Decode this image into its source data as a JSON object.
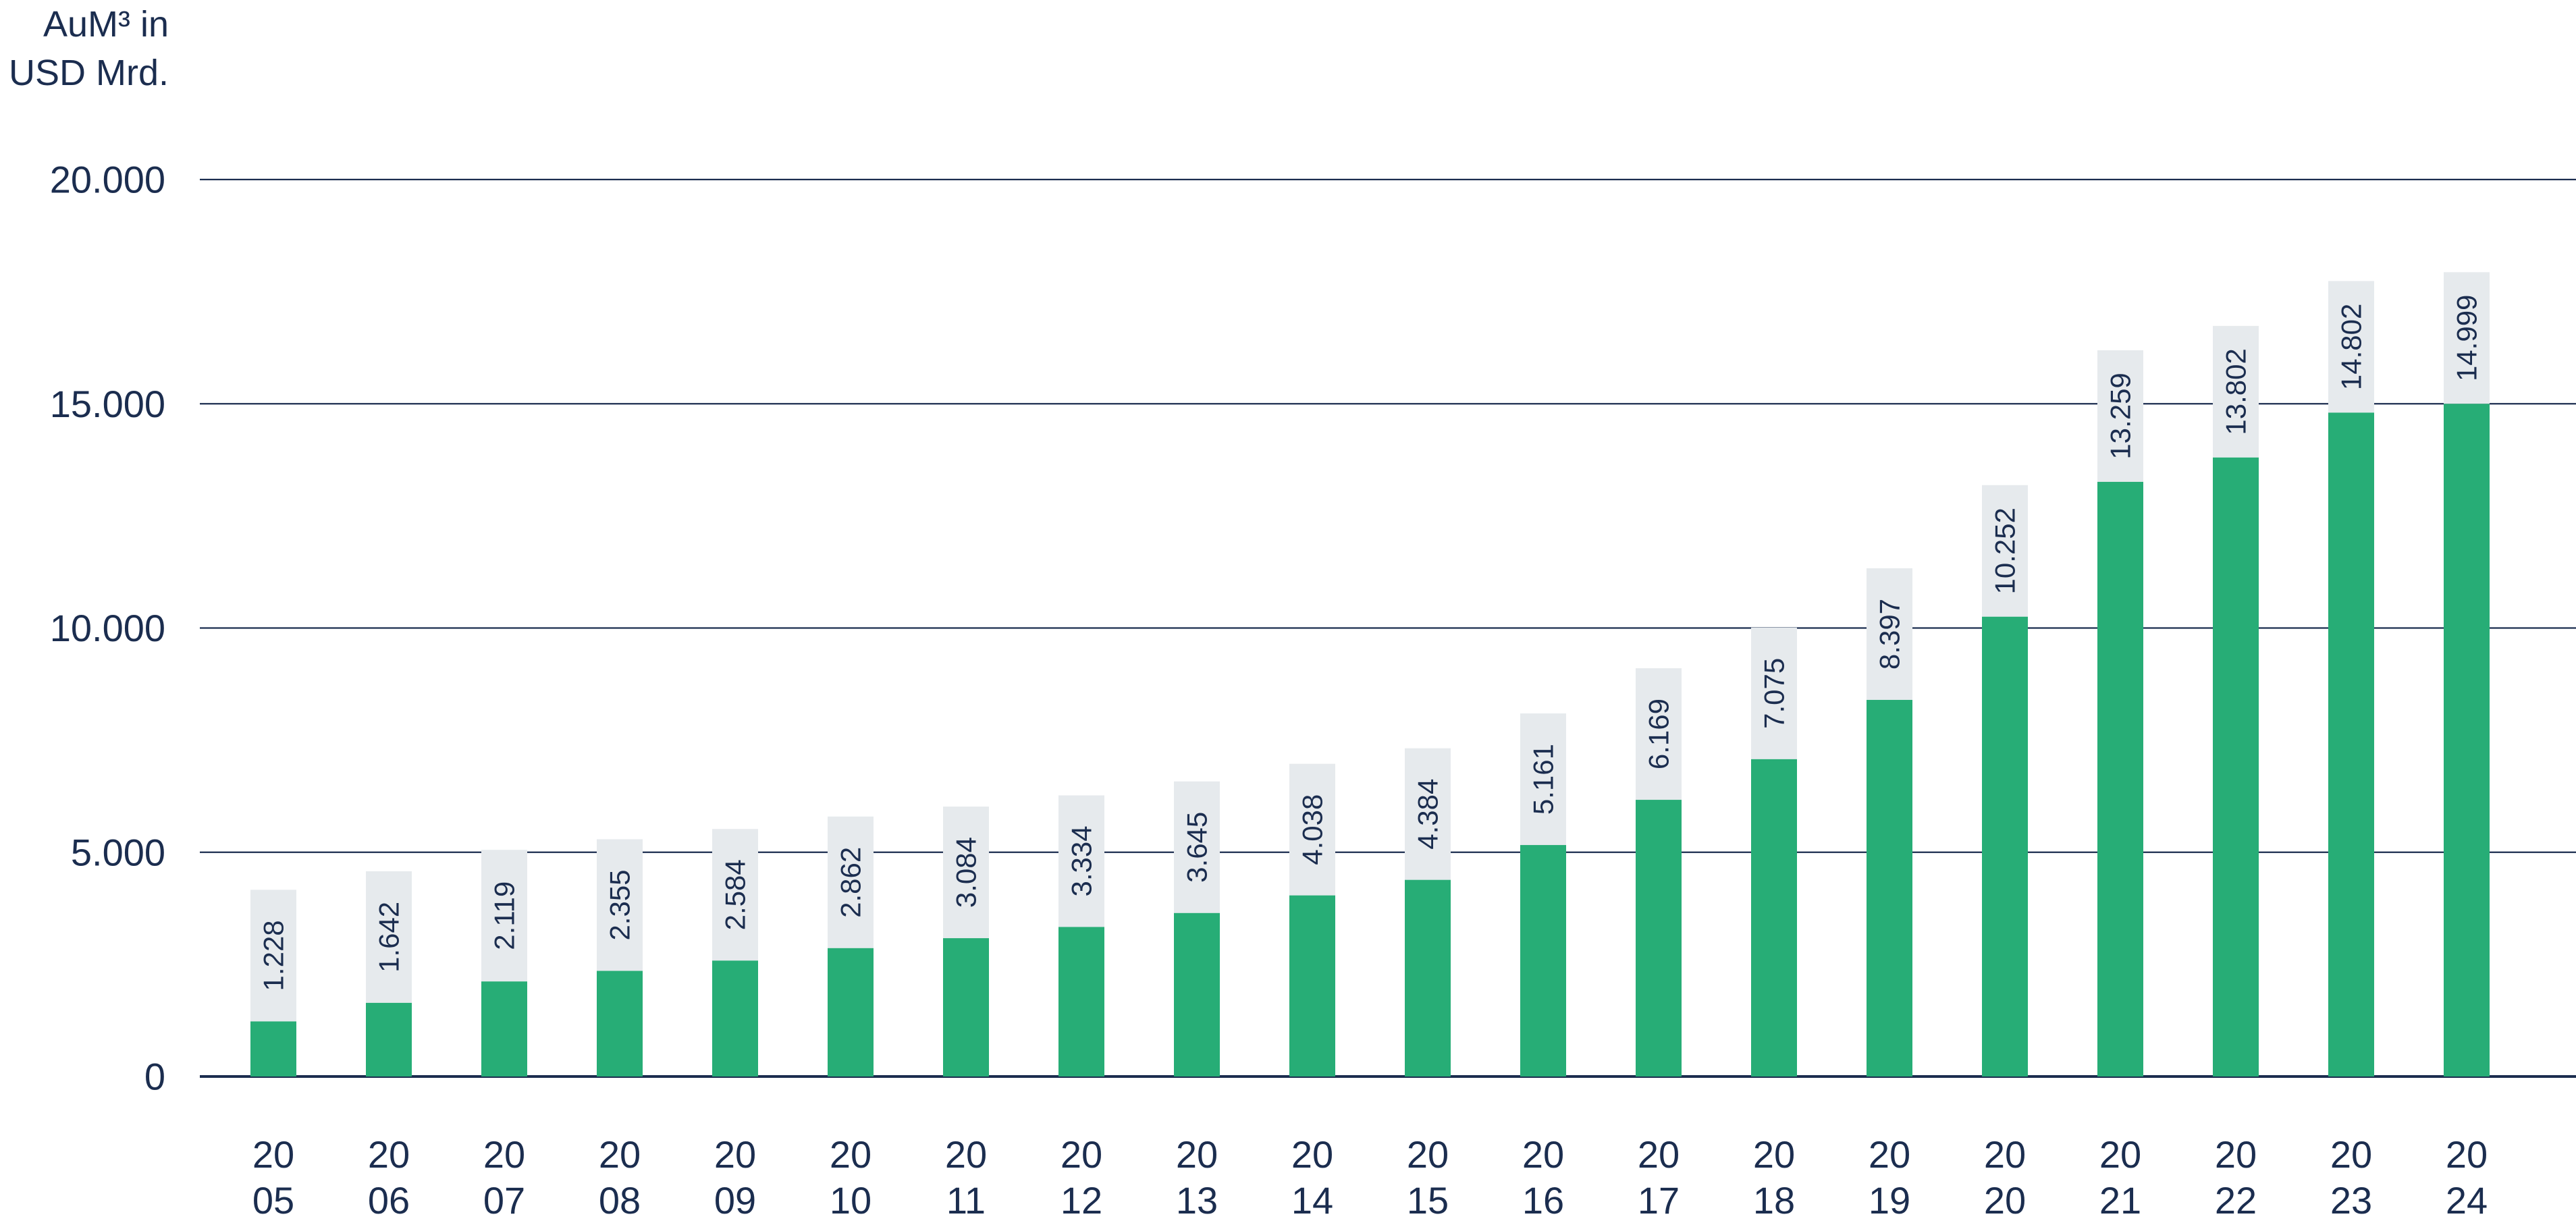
{
  "chart_data": {
    "type": "bar",
    "ylabel_lines": [
      "AuM³ in",
      "USD Mrd."
    ],
    "ylim": [
      0,
      20000
    ],
    "yticks": [
      0,
      5000,
      10000,
      15000,
      20000
    ],
    "ytick_labels": [
      "0",
      "5.000",
      "10.000",
      "15.000",
      "20.000"
    ],
    "grid": true,
    "categories": [
      [
        "20",
        "05"
      ],
      [
        "20",
        "06"
      ],
      [
        "20",
        "07"
      ],
      [
        "20",
        "08"
      ],
      [
        "20",
        "09"
      ],
      [
        "20",
        "10"
      ],
      [
        "20",
        "11"
      ],
      [
        "20",
        "12"
      ],
      [
        "20",
        "13"
      ],
      [
        "20",
        "14"
      ],
      [
        "20",
        "15"
      ],
      [
        "20",
        "16"
      ],
      [
        "20",
        "17"
      ],
      [
        "20",
        "18"
      ],
      [
        "20",
        "19"
      ],
      [
        "20",
        "20"
      ],
      [
        "20",
        "21"
      ],
      [
        "20",
        "22"
      ],
      [
        "20",
        "23"
      ],
      [
        "20",
        "24"
      ]
    ],
    "values": [
      1228,
      1642,
      2119,
      2355,
      2584,
      2862,
      3084,
      3334,
      3645,
      4038,
      4384,
      5161,
      6169,
      7075,
      8397,
      10252,
      13259,
      13802,
      14802,
      14999
    ],
    "value_labels": [
      "1.228",
      "1.642",
      "2.119",
      "2.355",
      "2.584",
      "2.862",
      "3.084",
      "3.334",
      "3.645",
      "4.038",
      "4.384",
      "5.161",
      "6.169",
      "7.075",
      "8.397",
      "10.252",
      "13.259",
      "13.802",
      "14.802",
      "14.999"
    ],
    "colors": {
      "bar": "#27ad76",
      "label_box": "#e6eaed",
      "grid": "#1b2d4f",
      "text": "#1b2d4f"
    }
  }
}
